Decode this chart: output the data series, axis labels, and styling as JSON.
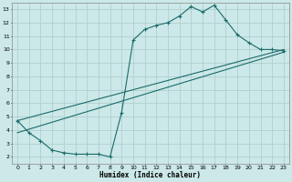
{
  "xlabel": "Humidex (Indice chaleur)",
  "background_color": "#cce8e8",
  "grid_color": "#b0d0d0",
  "line_color": "#1a6b6b",
  "xlim": [
    -0.5,
    23.5
  ],
  "ylim": [
    1.5,
    13.5
  ],
  "xticks": [
    0,
    1,
    2,
    3,
    4,
    5,
    6,
    7,
    8,
    9,
    10,
    11,
    12,
    13,
    14,
    15,
    16,
    17,
    18,
    19,
    20,
    21,
    22,
    23
  ],
  "yticks": [
    2,
    3,
    4,
    5,
    6,
    7,
    8,
    9,
    10,
    11,
    12,
    13
  ],
  "line1_x": [
    0,
    1,
    2,
    3,
    4,
    5,
    6,
    7,
    8,
    9,
    10,
    11,
    12,
    13,
    14,
    15,
    16,
    17,
    18,
    19,
    20,
    21,
    22,
    23
  ],
  "line1_y": [
    4.7,
    3.8,
    3.2,
    2.5,
    2.3,
    2.2,
    2.2,
    2.2,
    2.0,
    5.3,
    10.7,
    11.5,
    11.8,
    12.0,
    12.5,
    13.2,
    12.8,
    13.3,
    12.2,
    11.1,
    10.5,
    10.0,
    10.0,
    9.9
  ],
  "line2_x": [
    0,
    23
  ],
  "line2_y": [
    4.7,
    10.0
  ],
  "line3_x": [
    0,
    23
  ],
  "line3_y": [
    3.8,
    9.8
  ]
}
